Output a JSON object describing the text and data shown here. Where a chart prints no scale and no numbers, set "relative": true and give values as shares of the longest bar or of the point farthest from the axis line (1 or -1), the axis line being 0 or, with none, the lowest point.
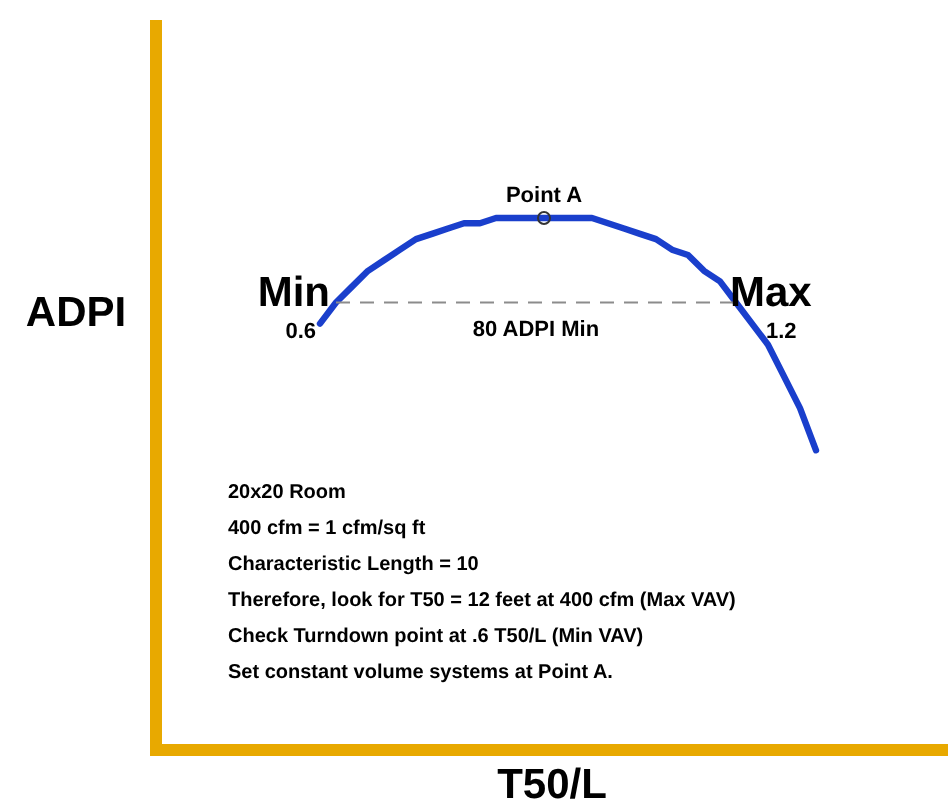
{
  "chart_data": {
    "type": "line",
    "relative": true,
    "xlabel": "T50/L",
    "ylabel": "ADPI",
    "categories": [
      null,
      null,
      null,
      null,
      null,
      null,
      null,
      null,
      null,
      null,
      null,
      null,
      null,
      null,
      null,
      null,
      null,
      null,
      null,
      null,
      null,
      null,
      null,
      null,
      null,
      null,
      null,
      null,
      null,
      null,
      null,
      null,
      null,
      null,
      null,
      null,
      null,
      null,
      null,
      null,
      null,
      null,
      null,
      null,
      null,
      null,
      null,
      null,
      null,
      null
    ],
    "series": [
      {
        "color": "#1a3fcc",
        "values": [
          null,
          null,
          null,
          null,
          null,
          null,
          null,
          null,
          null,
          null,
          0.8,
          0.84,
          0.87,
          0.9,
          0.92,
          0.94,
          0.96,
          0.97,
          0.98,
          0.99,
          0.99,
          1,
          1,
          1,
          1,
          1,
          1,
          1,
          0.99,
          0.98,
          0.97,
          0.96,
          0.94,
          0.93,
          0.9,
          0.88,
          0.84,
          0.8,
          0.76,
          0.7,
          0.64,
          0.56,
          null,
          null,
          null,
          null,
          null,
          null,
          null,
          null
        ]
      }
    ],
    "ref_lines": [
      {
        "axis": "y",
        "value": 0.84,
        "label": "80 ADPI Min",
        "color": "#8c8c8c",
        "line_style": "dashed"
      }
    ],
    "annotations": [
      "Min",
      "0.6",
      "Max",
      "1.2",
      {
        "text": "Point A",
        "y": 1
      },
      "20x20 Room",
      "400 cfm = 1 cfm/sq ft",
      "Characteristic Length = 10",
      "Therefore, look for T50 = 12 feet at 400 cfm (Max VAV)",
      "Check Turndown point at .6 T50/L (Min VAV)",
      "Set constant volume systems at Point A."
    ]
  }
}
